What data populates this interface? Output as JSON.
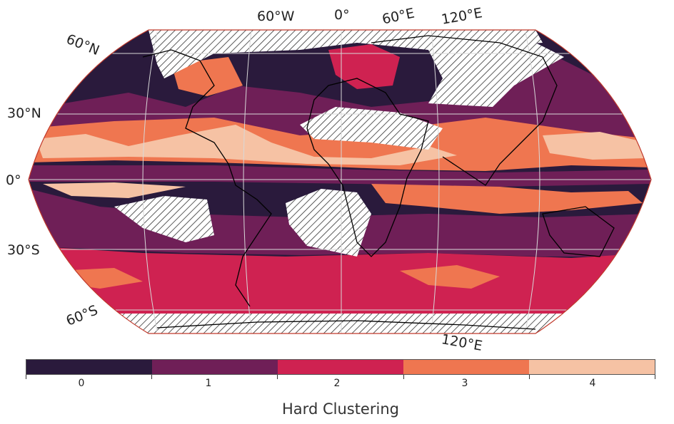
{
  "map": {
    "projection": "robinson",
    "clusters": [
      {
        "id": 0,
        "color": "#2a1a3c"
      },
      {
        "id": 1,
        "color": "#6f1f57"
      },
      {
        "id": 2,
        "color": "#cf2251"
      },
      {
        "id": 3,
        "color": "#ef7650"
      },
      {
        "id": 4,
        "color": "#f6c2a4"
      }
    ],
    "masked_pattern": "diagonal-hatch",
    "lon_labels": [
      "60°W",
      "0°",
      "60°E",
      "120°E",
      "120°E"
    ],
    "lat_labels": [
      "60°N",
      "30°N",
      "0°",
      "30°S",
      "60°S"
    ]
  },
  "colorbar": {
    "ticks": [
      "0",
      "1",
      "2",
      "3",
      "4"
    ],
    "title": "Hard Clustering"
  }
}
